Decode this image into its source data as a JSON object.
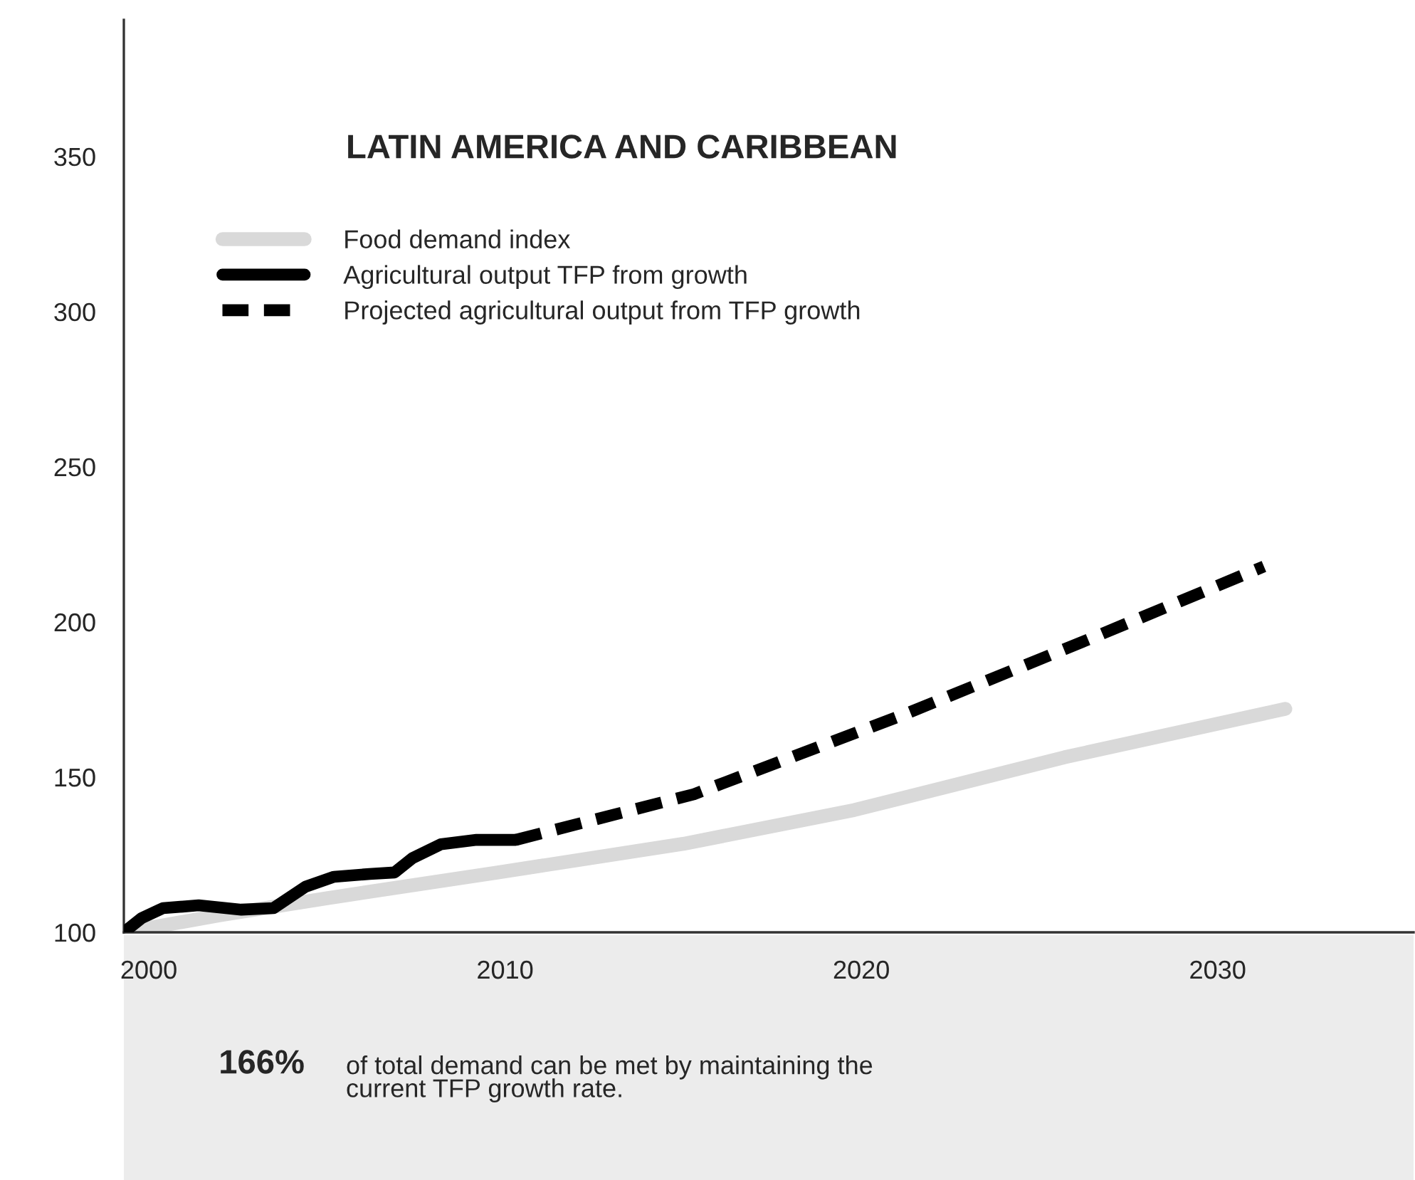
{
  "chart_data": {
    "type": "line",
    "title": "LATIN AMERICA AND CARIBBEAN",
    "xlim": [
      1999.3,
      2035.5
    ],
    "xticks": [
      2000,
      2010,
      2020,
      2030
    ],
    "ylim": [
      100,
      394
    ],
    "yticks": [
      100,
      150,
      200,
      250,
      300,
      350
    ],
    "grid": false,
    "legend": "top left",
    "marker": "none",
    "series": [
      {
        "name": "Food demand index",
        "color": "#d9d9d9",
        "line_style": "solid",
        "x": [
          1999.3,
          2002,
          2005,
          2009.8,
          2015,
          2019.8,
          2025.7,
          2031.9
        ],
        "values": [
          100,
          105.5,
          111,
          119.3,
          128.5,
          139.4,
          156.4,
          172
        ]
      },
      {
        "name": "Agricultural output TFP from growth",
        "color": "#000000",
        "line_style": "solid",
        "x": [
          1999.3,
          1999.8,
          2000.4,
          2001.4,
          2002.6,
          2003.5,
          2004.4,
          2005.2,
          2006.2,
          2006.9,
          2007.4,
          2008.2,
          2009.2,
          2010.3
        ],
        "values": [
          100,
          104.6,
          107.8,
          108.7,
          107.3,
          107.8,
          114.7,
          117.9,
          118.8,
          119.3,
          123.9,
          128.4,
          129.8,
          129.8
        ]
      },
      {
        "name": "Projected agricultural output from TFP growth",
        "color": "#000000",
        "line_style": "dashed",
        "x": [
          2010.3,
          2015.3,
          2021.2,
          2026.4,
          2031.3
        ],
        "values": [
          129.8,
          144.5,
          170.2,
          194.5,
          217.9
        ]
      }
    ],
    "annotations": [
      "166%",
      "of total demand can be met by maintaining the\ncurrent TFP growth rate."
    ]
  }
}
